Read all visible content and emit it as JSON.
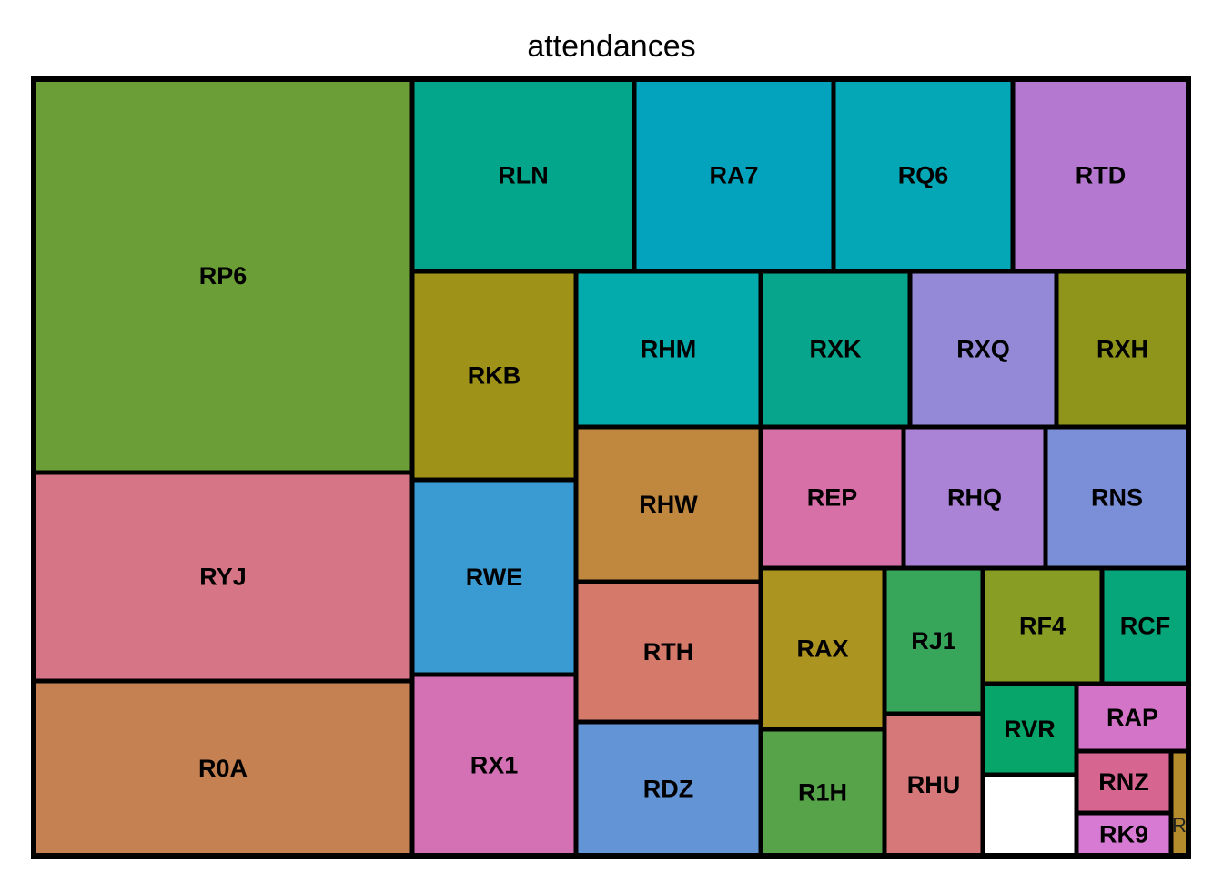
{
  "chart_data": {
    "type": "treemap",
    "title": "attendances",
    "tiles": [
      {
        "name": "RP6",
        "color": "#6b9e36"
      },
      {
        "name": "RYJ",
        "color": "#d67585"
      },
      {
        "name": "R0A",
        "color": "#c68152"
      },
      {
        "name": "RLN",
        "color": "#03a68a"
      },
      {
        "name": "RA7",
        "color": "#03a3bd"
      },
      {
        "name": "RQ6",
        "color": "#03a7b6"
      },
      {
        "name": "RTD",
        "color": "#b578d0"
      },
      {
        "name": "RKB",
        "color": "#9e9218"
      },
      {
        "name": "RWE",
        "color": "#3a9bd2"
      },
      {
        "name": "RX1",
        "color": "#d371b4"
      },
      {
        "name": "RHM",
        "color": "#04abad"
      },
      {
        "name": "RXK",
        "color": "#07a58b"
      },
      {
        "name": "RXQ",
        "color": "#9489d6"
      },
      {
        "name": "RXH",
        "color": "#8f951a"
      },
      {
        "name": "RHW",
        "color": "#c0883f"
      },
      {
        "name": "REP",
        "color": "#d870a8"
      },
      {
        "name": "RHQ",
        "color": "#aa82d6"
      },
      {
        "name": "RNS",
        "color": "#7b8fd8"
      },
      {
        "name": "RTH",
        "color": "#d57a6b"
      },
      {
        "name": "RDZ",
        "color": "#6394d6"
      },
      {
        "name": "RAX",
        "color": "#ac9421"
      },
      {
        "name": "R1H",
        "color": "#56a34a"
      },
      {
        "name": "RJ1",
        "color": "#37a55a"
      },
      {
        "name": "RHU",
        "color": "#d6787a"
      },
      {
        "name": "RF4",
        "color": "#879d24"
      },
      {
        "name": "RCF",
        "color": "#07a67a"
      },
      {
        "name": "RVR",
        "color": "#07a56a"
      },
      {
        "name": "RAP",
        "color": "#d374c9"
      },
      {
        "name": "RNZ",
        "color": "#d6658f"
      },
      {
        "name": "RK9",
        "color": "#d67ad3"
      },
      {
        "name": "R",
        "color": "#b48c2c"
      }
    ]
  }
}
